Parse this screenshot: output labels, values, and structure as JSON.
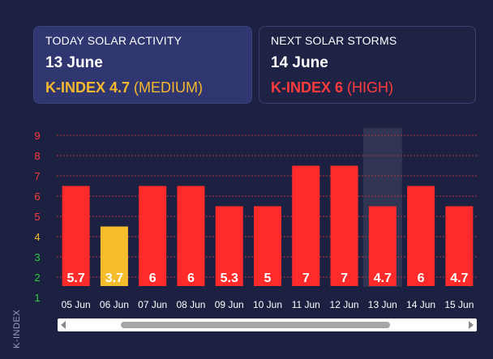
{
  "today": {
    "title": "TODAY SOLAR ACTIVITY",
    "date": "13 June",
    "k_label": "K-INDEX 4.7",
    "level": "(MEDIUM)",
    "color": "#f5b82e"
  },
  "next": {
    "title": "NEXT SOLAR STORMS",
    "date": "14 June",
    "k_label": "K-INDEX 6",
    "level": "(HIGH)",
    "color": "#ff3b3b"
  },
  "chart_data": {
    "type": "bar",
    "ylabel": "K-INDEX",
    "ylim": [
      1,
      9
    ],
    "yticks": [
      {
        "v": 1,
        "label": "1",
        "color": "#2ecc40"
      },
      {
        "v": 2,
        "label": "2",
        "color": "#2ecc40"
      },
      {
        "v": 3,
        "label": "3",
        "color": "#2ecc40"
      },
      {
        "v": 4,
        "label": "4",
        "color": "#f5b82e"
      },
      {
        "v": 5,
        "label": "5",
        "color": "#ff3b3b"
      },
      {
        "v": 6,
        "label": "6",
        "color": "#ff3b3b"
      },
      {
        "v": 7,
        "label": "7",
        "color": "#ff3b3b"
      },
      {
        "v": 8,
        "label": "8",
        "color": "#ff3b3b"
      },
      {
        "v": 9,
        "label": "9",
        "color": "#ff3b3b"
      }
    ],
    "categories": [
      "05 Jun",
      "06 Jun",
      "07 Jun",
      "08 Jun",
      "09 Jun",
      "10 Jun",
      "11 Jun",
      "12 Jun",
      "13 Jun",
      "14 Jun",
      "15 Jun"
    ],
    "labels": [
      "5.7",
      "3.7",
      "6",
      "6",
      "5.3",
      "5",
      "7",
      "7",
      "4.7",
      "6",
      "4.7"
    ],
    "bar_levels": [
      6.5,
      4.5,
      6.5,
      6.5,
      5.5,
      5.5,
      7.5,
      7.5,
      5.5,
      6.5,
      5.5
    ],
    "bar_colors": [
      "#ff2a2a",
      "#f5bd2c",
      "#ff2a2a",
      "#ff2a2a",
      "#ff2a2a",
      "#ff2a2a",
      "#ff2a2a",
      "#ff2a2a",
      "#ff2a2a",
      "#ff2a2a",
      "#ff2a2a"
    ],
    "highlight_index": 8,
    "gridline_color": "#b8323e"
  }
}
